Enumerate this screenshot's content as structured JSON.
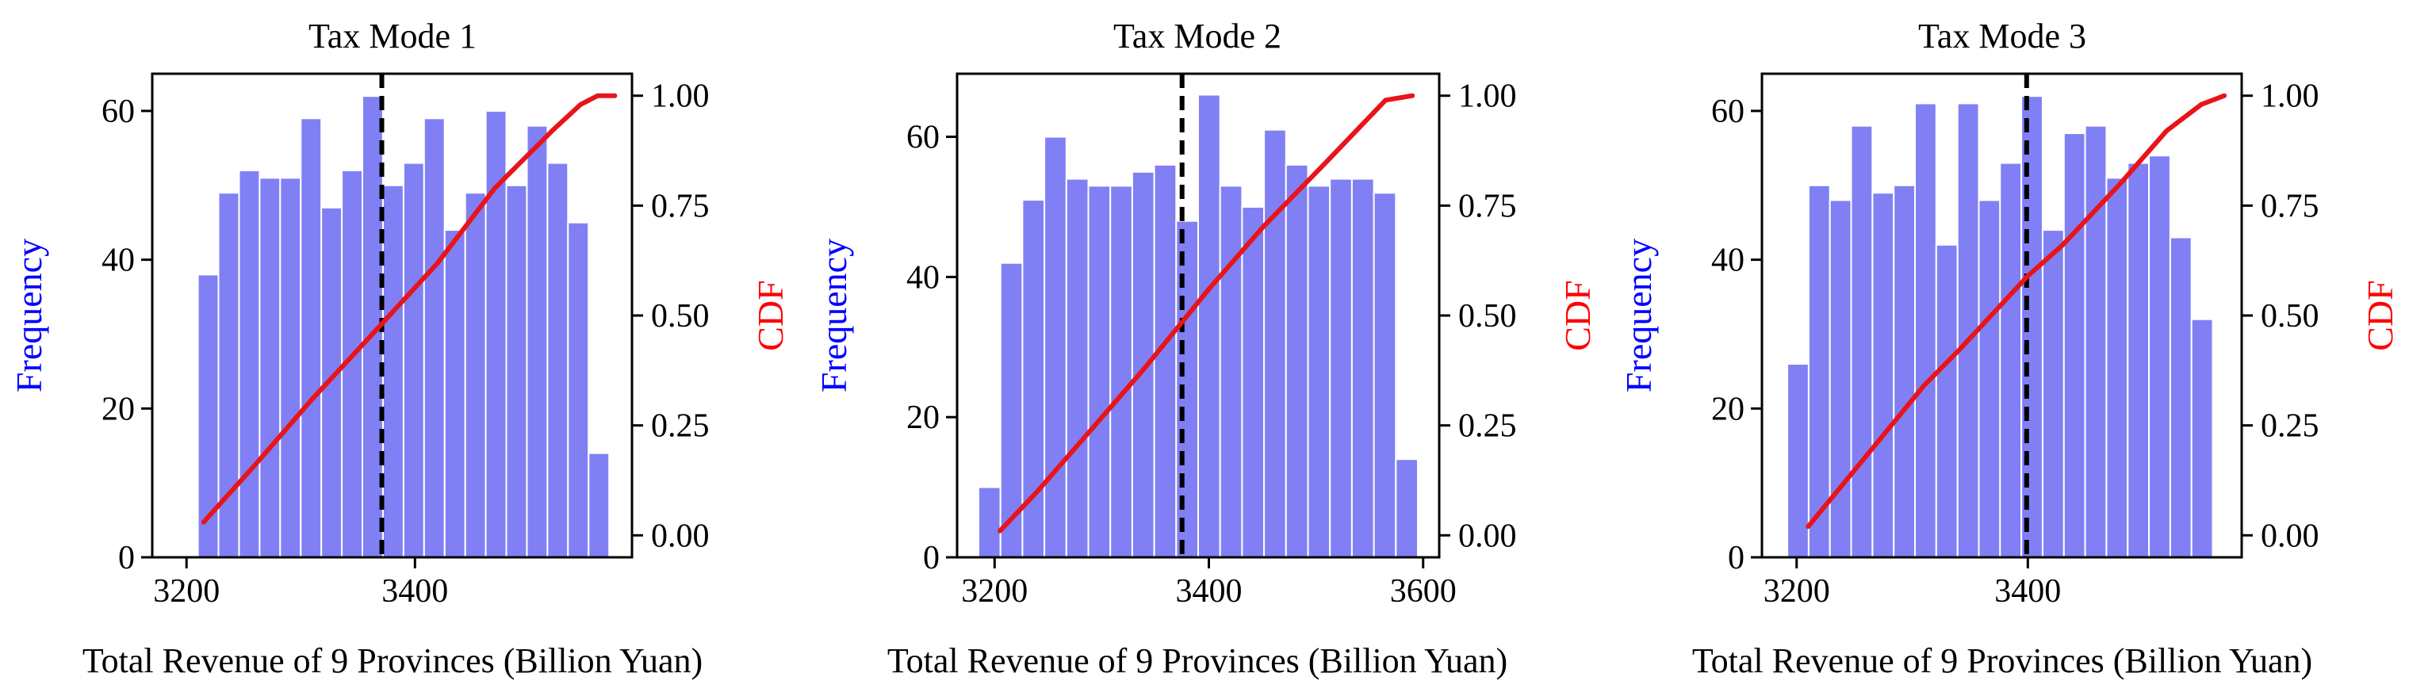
{
  "chart_data": [
    {
      "type": "bar",
      "title": "Tax Mode 1",
      "xlabel": "Total Revenue of 9 Provinces (Billion Yuan)",
      "ylabel": "Frequency",
      "y2label": "CDF",
      "xlim": [
        3170,
        3590
      ],
      "ylim": [
        0,
        65
      ],
      "y2lim": [
        -0.05,
        1.05
      ],
      "xticks": [
        3200,
        3400
      ],
      "yticks": [
        0,
        20,
        40,
        60
      ],
      "y2ticks": [
        0.0,
        0.25,
        0.5,
        0.75,
        1.0
      ],
      "y2ticklabels": [
        "0.00",
        "0.25",
        "0.50",
        "0.75",
        "1.00"
      ],
      "bin_start": 3210,
      "bin_width": 18,
      "counts": [
        38,
        49,
        52,
        51,
        51,
        59,
        47,
        52,
        62,
        50,
        53,
        59,
        44,
        49,
        60,
        50,
        58,
        53,
        45,
        14
      ],
      "mean_line_x": 3371,
      "cdf": {
        "x": [
          3215,
          3260,
          3310,
          3360,
          3420,
          3470,
          3520,
          3545,
          3560,
          3575
        ],
        "y": [
          0.03,
          0.16,
          0.31,
          0.45,
          0.62,
          0.79,
          0.92,
          0.98,
          1.0,
          1.0
        ]
      },
      "grid": false
    },
    {
      "type": "bar",
      "title": "Tax Mode 2",
      "xlabel": "Total Revenue of 9 Provinces (Billion Yuan)",
      "ylabel": "Frequency",
      "y2label": "CDF",
      "xlim": [
        3165,
        3615
      ],
      "ylim": [
        0,
        69
      ],
      "y2lim": [
        -0.05,
        1.05
      ],
      "xticks": [
        3200,
        3400,
        3600
      ],
      "yticks": [
        0,
        20,
        40,
        60
      ],
      "y2ticks": [
        0.0,
        0.25,
        0.5,
        0.75,
        1.0
      ],
      "y2ticklabels": [
        "0.00",
        "0.25",
        "0.50",
        "0.75",
        "1.00"
      ],
      "bin_start": 3185,
      "bin_width": 20.5,
      "counts": [
        10,
        42,
        51,
        60,
        54,
        53,
        53,
        55,
        56,
        48,
        66,
        53,
        50,
        61,
        56,
        53,
        54,
        54,
        52,
        14
      ],
      "mean_line_x": 3375,
      "cdf": {
        "x": [
          3205,
          3240,
          3290,
          3340,
          3400,
          3450,
          3510,
          3565,
          3590
        ],
        "y": [
          0.01,
          0.1,
          0.24,
          0.38,
          0.56,
          0.7,
          0.85,
          0.99,
          1.0
        ]
      },
      "grid": false
    },
    {
      "type": "bar",
      "title": "Tax Mode 3",
      "xlabel": "Total Revenue of 9 Provinces (Billion Yuan)",
      "ylabel": "Frequency",
      "y2label": "CDF",
      "xlim": [
        3170,
        3585
      ],
      "ylim": [
        0,
        65
      ],
      "y2lim": [
        -0.05,
        1.05
      ],
      "xticks": [
        3200,
        3400
      ],
      "yticks": [
        0,
        20,
        40,
        60
      ],
      "y2ticks": [
        0.0,
        0.25,
        0.5,
        0.75,
        1.0
      ],
      "y2ticklabels": [
        "0.00",
        "0.25",
        "0.50",
        "0.75",
        "1.00"
      ],
      "bin_start": 3192,
      "bin_width": 18.4,
      "counts": [
        26,
        50,
        48,
        58,
        49,
        50,
        61,
        42,
        61,
        48,
        53,
        62,
        44,
        57,
        58,
        51,
        53,
        54,
        43,
        32
      ],
      "mean_line_x": 3399,
      "cdf": {
        "x": [
          3210,
          3260,
          3310,
          3340,
          3400,
          3430,
          3480,
          3520,
          3550,
          3570
        ],
        "y": [
          0.02,
          0.18,
          0.34,
          0.42,
          0.59,
          0.66,
          0.8,
          0.92,
          0.98,
          1.0
        ]
      },
      "grid": false
    }
  ],
  "colors": {
    "bars": "#8080f4",
    "bar_edge": "#ffffff",
    "cdf_line": "#e8141a",
    "mean_line": "#000000",
    "freq_label": "#0000ff",
    "cdf_label": "#ff0000"
  }
}
